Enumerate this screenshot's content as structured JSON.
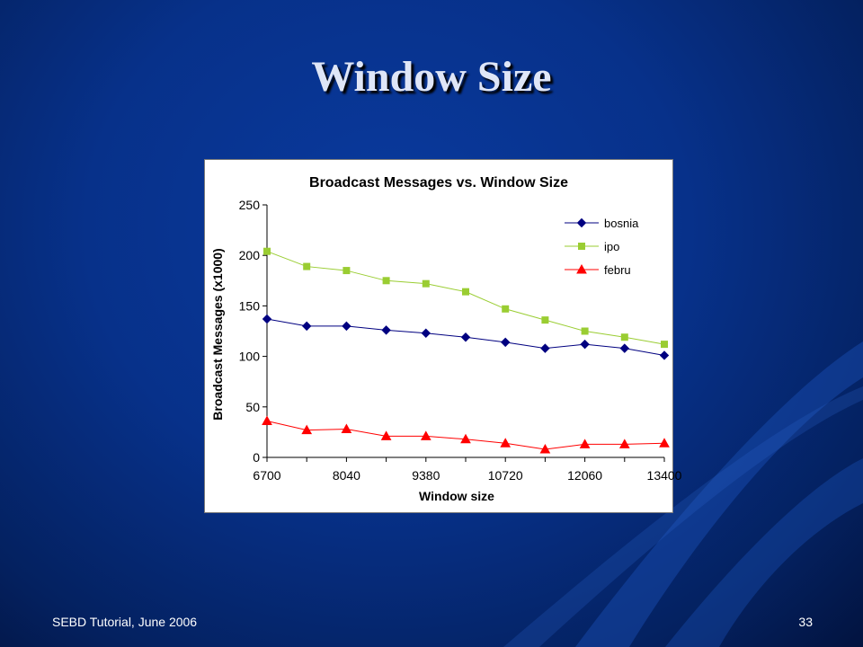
{
  "slide": {
    "title": "Window Size",
    "footer_left": "SEBD Tutorial, June 2006",
    "page_number": "33"
  },
  "colors": {
    "background": "#07318a",
    "bosnia": "#000080",
    "ipo": "#9acd32",
    "febru": "#ff0000",
    "axis": "#000000"
  },
  "chart_data": {
    "type": "line",
    "title": "Broadcast Messages vs. Window Size",
    "xlabel": "Window size",
    "ylabel": "Broadcast Messages (x1000)",
    "x": [
      6700,
      7370,
      8040,
      8710,
      9380,
      10050,
      10720,
      11390,
      12060,
      12730,
      13400
    ],
    "xticks": [
      6700,
      8040,
      9380,
      10720,
      12060,
      13400
    ],
    "xtick_labels": [
      "6700",
      "8040",
      "9380",
      "10720",
      "12060",
      "13400"
    ],
    "xlim": [
      6700,
      13400
    ],
    "ylim": [
      0,
      250
    ],
    "yticks": [
      0,
      50,
      100,
      150,
      200,
      250
    ],
    "ytick_labels": [
      "0",
      "50",
      "100",
      "150",
      "200",
      "250"
    ],
    "grid": false,
    "legend_position": "top-right",
    "series": [
      {
        "name": "bosnia",
        "marker": "diamond",
        "color": "#000080",
        "values": [
          137,
          130,
          130,
          126,
          123,
          119,
          114,
          108,
          112,
          108,
          101
        ]
      },
      {
        "name": "ipo",
        "marker": "square",
        "color": "#9acd32",
        "values": [
          204,
          189,
          185,
          175,
          172,
          164,
          147,
          136,
          125,
          119,
          112
        ]
      },
      {
        "name": "febru",
        "marker": "triangle",
        "color": "#ff0000",
        "values": [
          36,
          27,
          28,
          21,
          21,
          18,
          14,
          8,
          13,
          13,
          14
        ]
      }
    ]
  }
}
